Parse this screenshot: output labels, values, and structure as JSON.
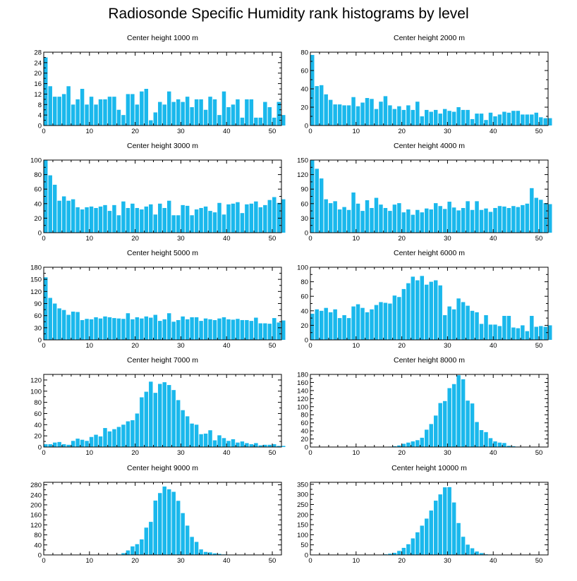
{
  "title": "Radiosonde Specific Humidity rank histograms by level",
  "colors": {
    "bar": "#1ab8ec",
    "bar_edge": "#ffffff",
    "axis": "#000000"
  },
  "chart_data": [
    {
      "type": "bar",
      "title": "Center height 1000 m",
      "xlim": [
        0,
        52
      ],
      "ylim": [
        0,
        28
      ],
      "yticks": [
        0,
        4,
        8,
        12,
        16,
        20,
        24,
        28
      ],
      "xticks": [
        0,
        10,
        20,
        30,
        40,
        50
      ],
      "values": [
        26,
        15,
        11,
        11,
        12,
        15,
        8,
        10,
        14,
        8,
        11,
        8,
        10,
        10,
        11,
        11,
        6,
        4,
        12,
        12,
        8,
        13,
        14,
        2,
        5,
        9,
        8,
        13,
        9,
        10,
        9,
        11,
        7,
        10,
        10,
        6,
        11,
        10,
        4,
        13,
        7,
        8,
        10,
        3,
        10,
        10,
        3,
        3,
        9,
        7,
        3,
        9,
        4
      ]
    },
    {
      "type": "bar",
      "title": "Center height 2000 m",
      "xlim": [
        0,
        52
      ],
      "ylim": [
        0,
        80
      ],
      "yticks": [
        0,
        20,
        40,
        60,
        80
      ],
      "xticks": [
        0,
        10,
        20,
        30,
        40,
        50
      ],
      "values": [
        77,
        43,
        44,
        34,
        28,
        23,
        23,
        22,
        22,
        31,
        21,
        25,
        30,
        29,
        18,
        26,
        32,
        22,
        18,
        21,
        17,
        22,
        17,
        26,
        10,
        17,
        15,
        17,
        13,
        18,
        16,
        15,
        20,
        17,
        17,
        7,
        13,
        13,
        6,
        14,
        10,
        12,
        15,
        14,
        16,
        16,
        12,
        12,
        12,
        14,
        9,
        8,
        8
      ]
    },
    {
      "type": "bar",
      "title": "Center height 3000 m",
      "xlim": [
        0,
        52
      ],
      "ylim": [
        0,
        100
      ],
      "yticks": [
        0,
        20,
        40,
        60,
        80,
        100
      ],
      "xticks": [
        0,
        10,
        20,
        30,
        40,
        50
      ],
      "values": [
        100,
        79,
        66,
        44,
        50,
        44,
        46,
        35,
        32,
        35,
        36,
        34,
        36,
        38,
        30,
        38,
        24,
        43,
        34,
        40,
        34,
        32,
        36,
        39,
        25,
        40,
        34,
        44,
        24,
        24,
        38,
        37,
        24,
        32,
        34,
        36,
        30,
        28,
        41,
        25,
        39,
        40,
        42,
        27,
        39,
        40,
        43,
        35,
        38,
        45,
        49,
        41,
        46
      ]
    },
    {
      "type": "bar",
      "title": "Center height 4000 m",
      "xlim": [
        0,
        52
      ],
      "ylim": [
        0,
        150
      ],
      "yticks": [
        0,
        30,
        60,
        90,
        120,
        150
      ],
      "xticks": [
        0,
        10,
        20,
        30,
        40,
        50
      ],
      "values": [
        150,
        132,
        112,
        69,
        61,
        65,
        48,
        53,
        47,
        83,
        60,
        45,
        67,
        51,
        72,
        58,
        51,
        45,
        58,
        61,
        42,
        48,
        37,
        47,
        42,
        50,
        48,
        61,
        55,
        49,
        64,
        52,
        46,
        51,
        65,
        47,
        65,
        47,
        50,
        43,
        51,
        55,
        54,
        51,
        55,
        53,
        57,
        60,
        92,
        72,
        68,
        61,
        59
      ]
    },
    {
      "type": "bar",
      "title": "Center height 5000 m",
      "xlim": [
        0,
        52
      ],
      "ylim": [
        0,
        180
      ],
      "yticks": [
        0,
        30,
        60,
        90,
        120,
        150,
        180
      ],
      "xticks": [
        0,
        10,
        20,
        30,
        40,
        50
      ],
      "values": [
        155,
        104,
        90,
        78,
        74,
        62,
        70,
        69,
        49,
        52,
        51,
        56,
        53,
        58,
        56,
        54,
        53,
        52,
        66,
        51,
        56,
        53,
        58,
        55,
        62,
        47,
        51,
        66,
        45,
        49,
        58,
        51,
        56,
        56,
        47,
        53,
        51,
        49,
        53,
        56,
        51,
        50,
        52,
        49,
        49,
        47,
        55,
        41,
        41,
        40,
        54,
        43,
        48
      ]
    },
    {
      "type": "bar",
      "title": "Center height 6000 m",
      "xlim": [
        0,
        52
      ],
      "ylim": [
        0,
        100
      ],
      "yticks": [
        0,
        20,
        40,
        60,
        80,
        100
      ],
      "xticks": [
        0,
        10,
        20,
        30,
        40,
        50
      ],
      "values": [
        36,
        42,
        40,
        44,
        38,
        42,
        30,
        34,
        30,
        46,
        49,
        44,
        38,
        42,
        48,
        52,
        51,
        50,
        61,
        59,
        70,
        78,
        87,
        82,
        88,
        76,
        80,
        82,
        75,
        34,
        46,
        42,
        57,
        52,
        47,
        40,
        38,
        22,
        34,
        21,
        21,
        19,
        33,
        33,
        17,
        16,
        20,
        12,
        33,
        18,
        19,
        18,
        20
      ]
    },
    {
      "type": "bar",
      "title": "Center height 7000 m",
      "xlim": [
        0,
        52
      ],
      "ylim": [
        0,
        130
      ],
      "yticks": [
        0,
        20,
        40,
        60,
        80,
        100,
        120
      ],
      "xticks": [
        0,
        10,
        20,
        30,
        40,
        50
      ],
      "values": [
        5,
        5,
        8,
        9,
        5,
        4,
        11,
        15,
        13,
        11,
        18,
        22,
        19,
        34,
        28,
        32,
        36,
        40,
        46,
        48,
        60,
        89,
        99,
        117,
        97,
        113,
        116,
        111,
        102,
        84,
        66,
        55,
        42,
        40,
        23,
        24,
        30,
        12,
        21,
        16,
        11,
        14,
        8,
        10,
        7,
        5,
        7,
        3,
        4,
        4,
        5,
        2,
        2
      ]
    },
    {
      "type": "bar",
      "title": "Center height 8000 m",
      "xlim": [
        0,
        52
      ],
      "ylim": [
        0,
        180
      ],
      "yticks": [
        0,
        20,
        40,
        60,
        80,
        100,
        120,
        140,
        160,
        180
      ],
      "xticks": [
        0,
        10,
        20,
        30,
        40,
        50
      ],
      "values": [
        0,
        0,
        0,
        0,
        0,
        0,
        0,
        0,
        0,
        0,
        0,
        0,
        0,
        0,
        0,
        0,
        0,
        1,
        2,
        4,
        8,
        11,
        14,
        17,
        23,
        43,
        57,
        78,
        109,
        114,
        146,
        156,
        178,
        168,
        115,
        108,
        62,
        42,
        37,
        22,
        14,
        11,
        10,
        3,
        2,
        1,
        0,
        0,
        0,
        0,
        0,
        0,
        0
      ]
    },
    {
      "type": "bar",
      "title": "Center height 9000 m",
      "xlim": [
        0,
        52
      ],
      "ylim": [
        0,
        290
      ],
      "yticks": [
        0,
        40,
        80,
        120,
        160,
        200,
        240,
        280
      ],
      "xticks": [
        0,
        10,
        20,
        30,
        40,
        50
      ],
      "values": [
        0,
        0,
        0,
        0,
        0,
        0,
        0,
        0,
        0,
        0,
        0,
        0,
        0,
        0,
        1,
        1,
        2,
        7,
        18,
        34,
        43,
        62,
        109,
        132,
        217,
        247,
        273,
        262,
        252,
        216,
        167,
        117,
        72,
        52,
        22,
        12,
        10,
        6,
        4,
        2,
        1,
        1,
        0,
        0,
        0,
        0,
        0,
        0,
        0,
        0,
        0,
        0,
        0
      ]
    },
    {
      "type": "bar",
      "title": "Center height 10000 m",
      "xlim": [
        0,
        52
      ],
      "ylim": [
        0,
        360
      ],
      "yticks": [
        0,
        50,
        100,
        150,
        200,
        250,
        300,
        350
      ],
      "xticks": [
        0,
        10,
        20,
        30,
        40,
        50
      ],
      "values": [
        0,
        0,
        0,
        0,
        0,
        0,
        0,
        0,
        0,
        0,
        0,
        0,
        0,
        0,
        1,
        1,
        3,
        6,
        10,
        20,
        35,
        53,
        82,
        112,
        145,
        180,
        220,
        269,
        300,
        335,
        336,
        260,
        158,
        90,
        51,
        33,
        17,
        9,
        3,
        2,
        1,
        1,
        0,
        0,
        0,
        0,
        0,
        0,
        0,
        0,
        0,
        0,
        0
      ]
    }
  ]
}
